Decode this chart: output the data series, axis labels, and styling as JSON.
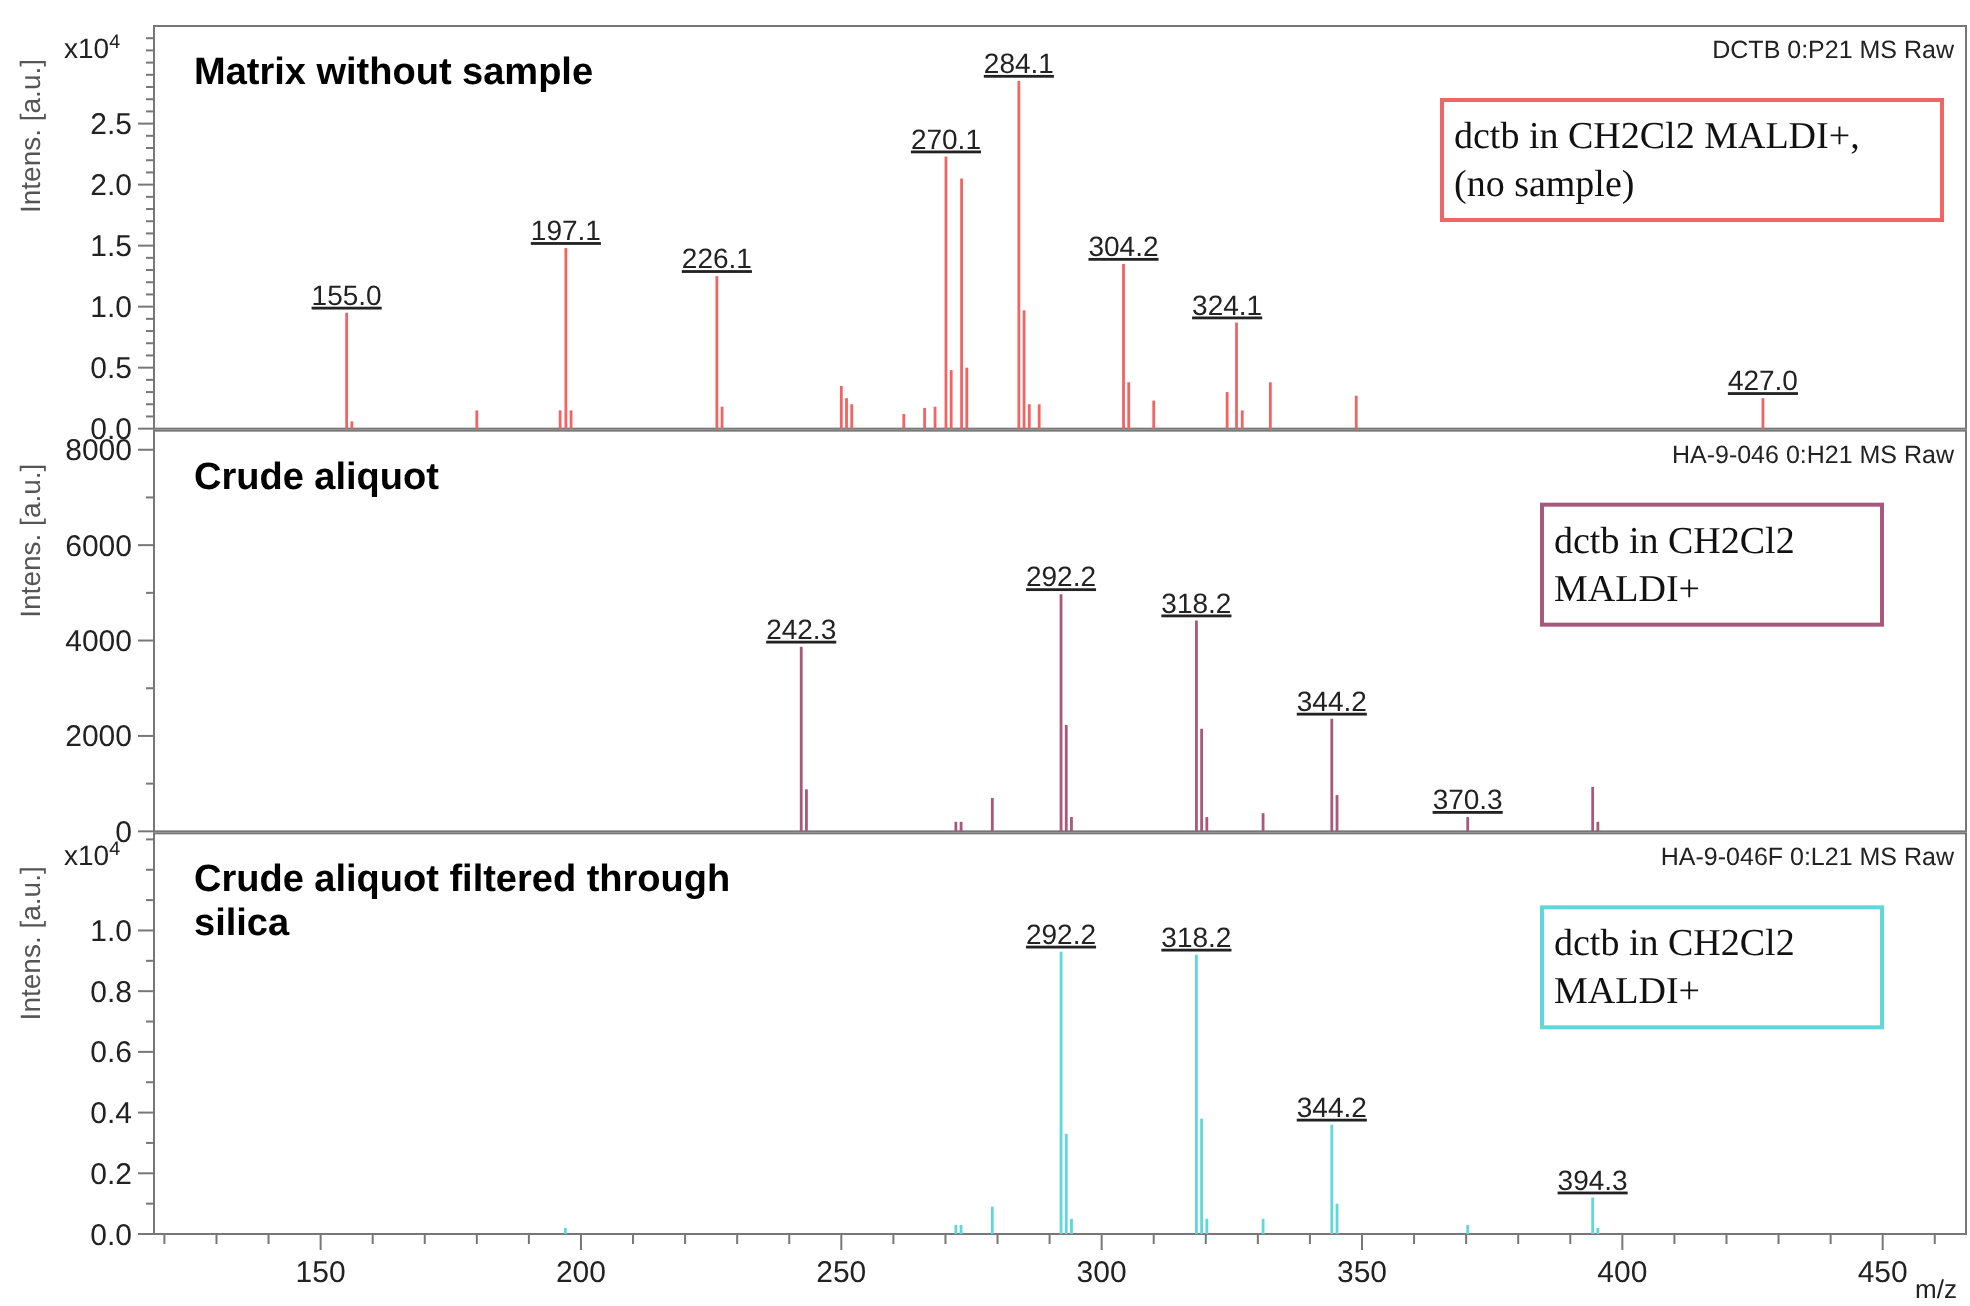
{
  "chart_data": [
    {
      "type": "bar",
      "title": "Matrix without sample",
      "subtitle": "DCTB 0:P21 MS Raw",
      "ylabel": "Intens. [a.u.]",
      "tick_labels": "y",
      "xlim": [
        118,
        466
      ],
      "ylim": [
        0,
        3.3
      ],
      "yticks": [
        {
          "value": 0,
          "label": "0.0"
        },
        {
          "value": 0.1,
          "label": null
        },
        {
          "value": 0.2,
          "label": null
        },
        {
          "value": 0.3,
          "label": null
        },
        {
          "value": 0.4,
          "label": null
        },
        0.5,
        {
          "value": 0.6,
          "label": null
        },
        {
          "value": 0.7,
          "label": null
        },
        {
          "value": 0.8,
          "label": null
        },
        {
          "value": 0.9,
          "label": null
        },
        {
          "value": 1,
          "label": "1.0"
        },
        {
          "value": 1.1,
          "label": null
        },
        {
          "value": 1.2,
          "label": null
        },
        {
          "value": 1.3,
          "label": null
        },
        {
          "value": 1.4,
          "label": null
        },
        1.5,
        {
          "value": 1.6,
          "label": null
        },
        {
          "value": 1.7,
          "label": null
        },
        {
          "value": 1.8,
          "label": null
        },
        {
          "value": 1.9,
          "label": null
        },
        {
          "value": 2,
          "label": "2.0"
        },
        {
          "value": 2.1,
          "label": null
        },
        {
          "value": 2.2,
          "label": null
        },
        {
          "value": 2.3,
          "label": null
        },
        {
          "value": 2.4,
          "label": null
        },
        2.5,
        {
          "value": 2.6,
          "label": null
        },
        {
          "value": 2.7,
          "label": null
        },
        {
          "value": 2.8,
          "label": null
        },
        {
          "value": 2.9,
          "label": null
        },
        {
          "value": 3,
          "label": null
        },
        {
          "value": 3.1,
          "label": null
        },
        {
          "value": 3.2,
          "label": null
        }
      ],
      "series": [
        {
          "color": "#f06464",
          "x": [
            155.0,
            156.0,
            180.0,
            196.0,
            197.1,
            198.1,
            226.1,
            227.1,
            250.0,
            251.0,
            252.0,
            262.0,
            266.0,
            268.0,
            270.1,
            271.1,
            273.1,
            274.1,
            284.1,
            285.1,
            286.1,
            288.0,
            304.2,
            305.2,
            310.0,
            324.1,
            325.9,
            327.0,
            332.4,
            348.9,
            427.0
          ],
          "values": [
            0.95,
            0.06,
            0.15,
            0.15,
            1.48,
            0.15,
            1.25,
            0.18,
            0.35,
            0.25,
            0.2,
            0.12,
            0.17,
            0.18,
            2.23,
            0.48,
            2.05,
            0.5,
            2.85,
            0.97,
            0.2,
            0.2,
            1.35,
            0.38,
            0.23,
            0.3,
            0.87,
            0.15,
            0.38,
            0.27,
            0.25
          ]
        }
      ],
      "annotations": [
        "x10$^{4}$",
        "dctb in CH2Cl2 MALDI+, (no sample)",
        {
          "text": "155.0",
          "x": 155.0,
          "y": 0.95
        },
        {
          "text": "197.1",
          "x": 197.1,
          "y": 1.48
        },
        {
          "text": "226.1",
          "x": 226.1,
          "y": 1.25
        },
        {
          "text": "270.1",
          "x": 270.1,
          "y": 2.23
        },
        {
          "text": "284.1",
          "x": 284.1,
          "y": 2.85
        },
        {
          "text": "304.2",
          "x": 304.2,
          "y": 1.35
        },
        {
          "text": "324.1",
          "x": 324.1,
          "y": 0.87
        },
        {
          "text": "427.0",
          "x": 427.0,
          "y": 0.25
        }
      ]
    },
    {
      "type": "bar",
      "title": "Crude aliquot",
      "subtitle": "HA-9-046 0:H21 MS Raw",
      "ylabel": "Intens. [a.u.]",
      "tick_labels": "y",
      "xlim": [
        118,
        466
      ],
      "ylim": [
        0,
        8400
      ],
      "yticks": [
        0,
        {
          "value": 1000,
          "label": null
        },
        2000,
        {
          "value": 3000,
          "label": null
        },
        4000,
        {
          "value": 5000,
          "label": null
        },
        6000,
        {
          "value": 7000,
          "label": null
        },
        8000
      ],
      "series": [
        {
          "color": "#a8587a",
          "x": [
            242.3,
            243.3,
            272.0,
            273.0,
            279.0,
            292.2,
            293.2,
            294.2,
            318.2,
            319.2,
            320.2,
            331.0,
            344.2,
            345.2,
            370.3,
            394.3,
            395.3
          ],
          "values": [
            3870,
            880,
            200,
            200,
            700,
            4970,
            2230,
            300,
            4420,
            2150,
            300,
            380,
            2360,
            760,
            300,
            930,
            200
          ]
        }
      ],
      "annotations": [
        "dctb in CH2Cl2 MALDI+",
        {
          "text": "242.3",
          "x": 242.3,
          "y": 3870
        },
        {
          "text": "292.2",
          "x": 292.2,
          "y": 4970
        },
        {
          "text": "318.2",
          "x": 318.2,
          "y": 4420
        },
        {
          "text": "344.2",
          "x": 344.2,
          "y": 2360
        },
        {
          "text": "370.3",
          "x": 370.3,
          "y": 300
        }
      ]
    },
    {
      "type": "bar",
      "title": "Crude aliquot filtered through silica",
      "subtitle": "HA-9-046F 0:L21 MS Raw",
      "ylabel": "Intens. [a.u.]",
      "xlabel": "m/z",
      "xlim": [
        118,
        466
      ],
      "xticks": [
        {
          "value": 120,
          "label": null
        },
        {
          "value": 130,
          "label": null
        },
        {
          "value": 140,
          "label": null
        },
        150,
        {
          "value": 160,
          "label": null
        },
        {
          "value": 170,
          "label": null
        },
        {
          "value": 180,
          "label": null
        },
        {
          "value": 190,
          "label": null
        },
        200,
        {
          "value": 210,
          "label": null
        },
        {
          "value": 220,
          "label": null
        },
        {
          "value": 230,
          "label": null
        },
        {
          "value": 240,
          "label": null
        },
        250,
        {
          "value": 260,
          "label": null
        },
        {
          "value": 270,
          "label": null
        },
        {
          "value": 280,
          "label": null
        },
        {
          "value": 290,
          "label": null
        },
        300,
        {
          "value": 310,
          "label": null
        },
        {
          "value": 320,
          "label": null
        },
        {
          "value": 330,
          "label": null
        },
        {
          "value": 340,
          "label": null
        },
        350,
        {
          "value": 360,
          "label": null
        },
        {
          "value": 370,
          "label": null
        },
        {
          "value": 380,
          "label": null
        },
        {
          "value": 390,
          "label": null
        },
        400,
        {
          "value": 410,
          "label": null
        },
        {
          "value": 420,
          "label": null
        },
        {
          "value": 430,
          "label": null
        },
        {
          "value": 440,
          "label": null
        },
        450,
        {
          "value": 460,
          "label": null
        }
      ],
      "ylim": [
        0,
        1.32
      ],
      "yticks": [
        {
          "value": 0,
          "label": "0.0"
        },
        {
          "value": 0.1,
          "label": null
        },
        0.2,
        {
          "value": 0.3,
          "label": null
        },
        0.4,
        {
          "value": 0.5,
          "label": null
        },
        0.6,
        {
          "value": 0.7,
          "label": null
        },
        0.8,
        {
          "value": 0.9,
          "label": null
        },
        {
          "value": 1,
          "label": "1.0"
        },
        {
          "value": 1.1,
          "label": null
        },
        {
          "value": 1.2,
          "label": null
        },
        {
          "value": 1.3,
          "label": null
        }
      ],
      "series": [
        {
          "color": "#5ed8d8",
          "x": [
            197.0,
            272.0,
            273.0,
            279.0,
            292.2,
            293.2,
            294.2,
            318.2,
            319.2,
            320.2,
            331.0,
            344.2,
            345.2,
            370.3,
            394.3,
            395.3
          ],
          "values": [
            0.02,
            0.03,
            0.03,
            0.09,
            0.93,
            0.33,
            0.05,
            0.92,
            0.38,
            0.05,
            0.05,
            0.36,
            0.1,
            0.03,
            0.12,
            0.02
          ]
        }
      ],
      "annotations": [
        "x10$^{4}$",
        "dctb in CH2Cl2 MALDI+",
        {
          "text": "292.2",
          "x": 292.2,
          "y": 0.93
        },
        {
          "text": "318.2",
          "x": 318.2,
          "y": 0.92
        },
        {
          "text": "344.2",
          "x": 344.2,
          "y": 0.36
        },
        {
          "text": "394.3",
          "x": 394.3,
          "y": 0.12
        }
      ]
    }
  ]
}
